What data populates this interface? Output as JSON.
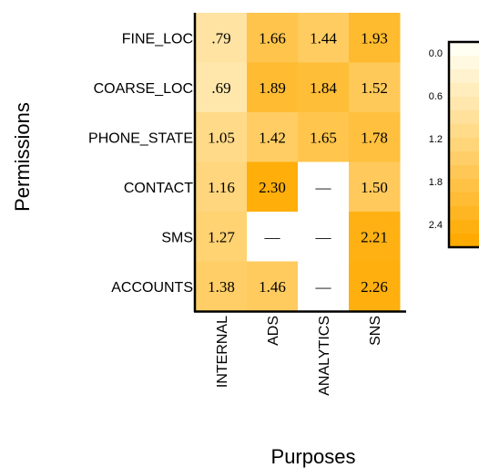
{
  "chart_data": {
    "type": "heatmap",
    "xlabel": "Purposes",
    "ylabel": "Permissions",
    "columns": [
      "INTERNAL",
      "ADS",
      "ANALYTICS",
      "SNS"
    ],
    "rows": [
      "FINE_LOC",
      "COARSE_LOC",
      "PHONE_STATE",
      "CONTACT",
      "SMS",
      "ACCOUNTS"
    ],
    "values": [
      [
        0.79,
        1.66,
        1.44,
        1.93
      ],
      [
        0.69,
        1.89,
        1.84,
        1.52
      ],
      [
        1.05,
        1.42,
        1.65,
        1.78
      ],
      [
        1.16,
        2.3,
        null,
        1.5
      ],
      [
        1.27,
        null,
        null,
        2.21
      ],
      [
        1.38,
        1.46,
        null,
        2.26
      ]
    ],
    "labels": [
      [
        ".79",
        "1.66",
        "1.44",
        "1.93"
      ],
      [
        ".69",
        "1.89",
        "1.84",
        "1.52"
      ],
      [
        "1.05",
        "1.42",
        "1.65",
        "1.78"
      ],
      [
        "1.16",
        "2.30",
        "—",
        "1.50"
      ],
      [
        "1.27",
        "—",
        "—",
        "2.21"
      ],
      [
        "1.38",
        "1.46",
        "—",
        "2.26"
      ]
    ],
    "missing_label": "—",
    "colorbar": {
      "ticks": [
        "0.0",
        "0.6",
        "1.2",
        "1.8",
        "2.4"
      ],
      "range": [
        0.0,
        2.4
      ],
      "colors": [
        "#fffff2",
        "#ffaa00"
      ]
    }
  }
}
